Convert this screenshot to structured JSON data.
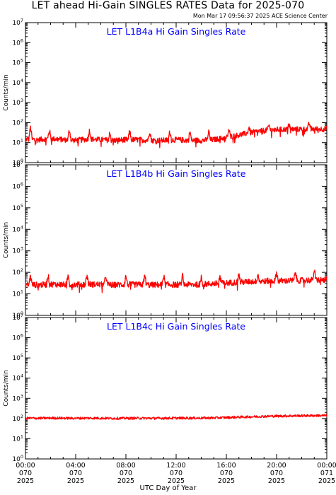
{
  "title": "LET ahead Hi-Gain SINGLES RATES Data for 2025-070",
  "timestamp": "Mon Mar 17 09:56:37 2025 ACE Science Center",
  "xlabel": "UTC Day of Year",
  "colors": {
    "series": "#ff0000",
    "panel_title": "#0000ff",
    "axes": "#000000"
  },
  "chart_data": [
    {
      "type": "line",
      "title": "LET L1B4a Hi Gain Singles Rate",
      "ylabel": "Counts/min",
      "yscale": "log",
      "ylim": [
        1,
        10000000
      ],
      "y_ticks": [
        1,
        10,
        100,
        1000,
        10000,
        100000,
        1000000,
        10000000
      ],
      "xlim": [
        "2025-070 00:00",
        "2025-071 00:00"
      ],
      "x_ticks": [
        "00:00",
        "04:00",
        "08:00",
        "12:00",
        "16:00",
        "20:00",
        "00:00"
      ],
      "series": [
        {
          "x_hours": [
            0,
            1,
            2,
            3,
            4,
            5,
            6,
            7,
            8,
            9,
            10,
            11,
            12,
            13,
            14,
            15,
            16,
            17,
            18,
            19,
            20,
            21,
            22,
            23,
            24
          ],
          "values": [
            15,
            14,
            16,
            14,
            13,
            15,
            14,
            13,
            14,
            14,
            13,
            13,
            14,
            13,
            13,
            14,
            18,
            24,
            32,
            40,
            45,
            46,
            47,
            48,
            48
          ],
          "spike_hours": [
            0.4,
            1.9,
            3.5,
            5.1,
            6.7,
            8.3,
            9.9,
            11.5,
            13.1,
            14.6,
            16.2,
            17.8,
            19.4,
            21.0,
            22.6
          ],
          "spike_values": [
            55,
            40,
            42,
            40,
            38,
            36,
            38,
            35,
            34,
            36,
            45,
            60,
            75,
            90,
            95
          ]
        }
      ]
    },
    {
      "type": "line",
      "title": "LET L1B4b Hi Gain Singles Rate",
      "ylabel": "Counts/min",
      "yscale": "log",
      "ylim": [
        1,
        10000000
      ],
      "y_ticks": [
        1,
        10,
        100,
        1000,
        10000,
        100000,
        1000000,
        10000000
      ],
      "xlim": [
        "2025-070 00:00",
        "2025-071 00:00"
      ],
      "x_ticks": [
        "00:00",
        "04:00",
        "08:00",
        "12:00",
        "16:00",
        "20:00",
        "00:00"
      ],
      "series": [
        {
          "x_hours": [
            0,
            1,
            2,
            3,
            4,
            5,
            6,
            7,
            8,
            9,
            10,
            11,
            12,
            13,
            14,
            15,
            16,
            17,
            18,
            19,
            20,
            21,
            22,
            23,
            24
          ],
          "values": [
            27,
            26,
            28,
            27,
            27,
            28,
            27,
            26,
            27,
            27,
            26,
            27,
            27,
            27,
            28,
            30,
            32,
            35,
            37,
            39,
            40,
            41,
            42,
            44,
            45
          ],
          "spike_hours": [
            0.4,
            1.8,
            3.4,
            4.9,
            6.4,
            8.0,
            9.5,
            11.0,
            12.5,
            14.0,
            15.5,
            17.0,
            18.5,
            20.0,
            21.5,
            23.0
          ],
          "spike_values": [
            70,
            72,
            70,
            72,
            70,
            68,
            70,
            70,
            70,
            68,
            72,
            80,
            90,
            95,
            100,
            120
          ]
        }
      ]
    },
    {
      "type": "line",
      "title": "LET L1B4c Hi Gain Singles Rate",
      "ylabel": "Counts/min",
      "yscale": "log",
      "ylim": [
        1,
        10000000
      ],
      "y_ticks": [
        1,
        10,
        100,
        1000,
        10000,
        100000,
        1000000,
        10000000
      ],
      "xlim": [
        "2025-070 00:00",
        "2025-071 00:00"
      ],
      "x_ticks": [
        "00:00",
        "04:00",
        "08:00",
        "12:00",
        "16:00",
        "20:00",
        "00:00"
      ],
      "series": [
        {
          "x_hours": [
            0,
            1,
            2,
            3,
            4,
            5,
            6,
            7,
            8,
            9,
            10,
            11,
            12,
            13,
            14,
            15,
            16,
            17,
            18,
            19,
            20,
            21,
            22,
            23,
            24
          ],
          "values": [
            105,
            103,
            106,
            104,
            103,
            105,
            104,
            102,
            103,
            104,
            103,
            104,
            105,
            105,
            106,
            108,
            112,
            118,
            122,
            128,
            132,
            135,
            138,
            140,
            140
          ],
          "spike_hours": [],
          "spike_values": []
        }
      ]
    }
  ],
  "x_tick_labels": [
    {
      "time": "00:00",
      "doy": "070",
      "year": "2025"
    },
    {
      "time": "04:00",
      "doy": "070",
      "year": "2025"
    },
    {
      "time": "08:00",
      "doy": "070",
      "year": "2025"
    },
    {
      "time": "12:00",
      "doy": "070",
      "year": "2025"
    },
    {
      "time": "16:00",
      "doy": "070",
      "year": "2025"
    },
    {
      "time": "20:00",
      "doy": "070",
      "year": "2025"
    },
    {
      "time": "00:00",
      "doy": "071",
      "year": "2025"
    }
  ]
}
